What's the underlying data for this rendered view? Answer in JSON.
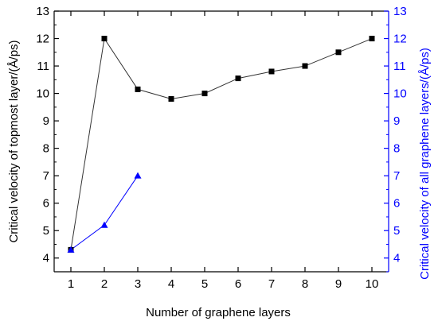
{
  "chart_data": {
    "type": "line",
    "title": "",
    "xlabel": "Number of graphene layers",
    "ylabel": "Critical velocity of topmost layer/(Å/ps)",
    "y2label": "Critical velocity of all graphene layers/(Å/ps)",
    "xlim": [
      0.5,
      10.5
    ],
    "ylim": [
      3.5,
      13
    ],
    "y2lim": [
      3.5,
      13
    ],
    "x_ticks": [
      "1",
      "2",
      "3",
      "4",
      "5",
      "6",
      "7",
      "8",
      "9",
      "10"
    ],
    "y_ticks": [
      "4",
      "5",
      "6",
      "7",
      "8",
      "9",
      "10",
      "11",
      "12",
      "13"
    ],
    "grid": false,
    "legend": "none",
    "series": [
      {
        "axis": "left",
        "marker": "square",
        "color": "#000000",
        "line_color": "#333333",
        "x": [
          1,
          2,
          3,
          4,
          5,
          6,
          7,
          8,
          9,
          10
        ],
        "values": [
          4.3,
          12.0,
          10.15,
          9.8,
          10.0,
          10.55,
          10.8,
          11.0,
          11.5,
          12.0
        ]
      },
      {
        "axis": "right",
        "marker": "triangle",
        "color": "#0000ff",
        "line_color": "#0000ff",
        "x": [
          1,
          2,
          3
        ],
        "values": [
          4.3,
          5.2,
          7.0
        ]
      }
    ],
    "right_axis_color": "#0000ff",
    "left_axis_color": "#000000"
  }
}
